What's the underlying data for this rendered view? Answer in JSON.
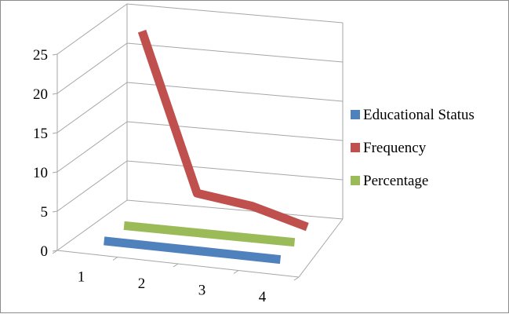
{
  "chart_data": {
    "type": "line",
    "variant": "3d",
    "categories": [
      "1",
      "2",
      "3",
      "4"
    ],
    "series": [
      {
        "name": "Educational Status",
        "color": "#4f81bd",
        "values": [
          0,
          0,
          0,
          0
        ]
      },
      {
        "name": "Frequency",
        "color": "#c0504d",
        "values": [
          23,
          3,
          2,
          0
        ]
      },
      {
        "name": "Percentage",
        "color": "#9bbb59",
        "values": [
          0,
          0,
          0,
          0
        ]
      }
    ],
    "y_ticks": [
      "0",
      "5",
      "10",
      "15",
      "20",
      "25"
    ],
    "ylim": [
      0,
      25
    ],
    "grid": true,
    "legend_position": "right"
  }
}
